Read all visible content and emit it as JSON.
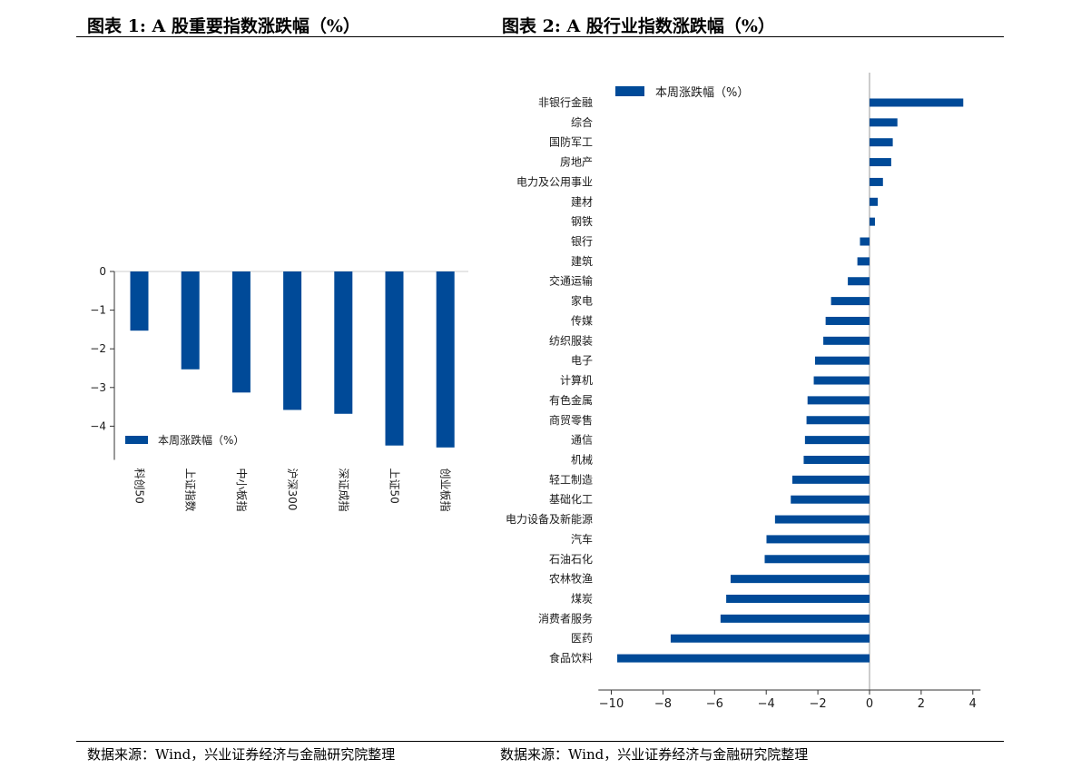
{
  "header": {
    "left_title": "图表 1:  A 股重要指数涨跌幅（%）",
    "right_title": "图表 2:  A 股行业指数涨跌幅（%）"
  },
  "footer": {
    "left_source": "数据来源：Wind，兴业证券经济与金融研究院整理",
    "right_source": "数据来源：Wind，兴业证券经济与金融研究院整理"
  },
  "colors": {
    "bar": "#004a98",
    "axis": "#333333",
    "zero_line": "#cccccc"
  },
  "chart_data": [
    {
      "type": "bar",
      "orientation": "vertical",
      "categories": [
        "科创50",
        "上证指数",
        "中小板指",
        "沪深300",
        "深证成指",
        "上证50",
        "创业板指"
      ],
      "series": [
        {
          "name": "本周涨跌幅（%）",
          "values": [
            -1.53,
            -2.53,
            -3.13,
            -3.58,
            -3.68,
            -4.5,
            -4.55
          ]
        }
      ],
      "ylim": [
        -4.8,
        0
      ],
      "yticks": [
        0,
        -1,
        -2,
        -3,
        -4
      ],
      "ytick_labels": [
        "0",
        "−1",
        "−2",
        "−3",
        "−4"
      ],
      "legend": "lower-left",
      "grid": false
    },
    {
      "type": "bar",
      "orientation": "horizontal",
      "categories": [
        "非银行金融",
        "综合",
        "国防军工",
        "房地产",
        "电力及公用事业",
        "建材",
        "钢铁",
        "银行",
        "建筑",
        "交通运输",
        "家电",
        "传媒",
        "纺织服装",
        "电子",
        "计算机",
        "有色金属",
        "商贸零售",
        "通信",
        "机械",
        "轻工制造",
        "基础化工",
        "电力设备及新能源",
        "汽车",
        "石油石化",
        "农林牧渔",
        "煤炭",
        "消费者服务",
        "医药",
        "食品饮料"
      ],
      "series": [
        {
          "name": "本周涨跌幅（%）",
          "values": [
            3.63,
            1.08,
            0.9,
            0.84,
            0.52,
            0.32,
            0.21,
            -0.37,
            -0.47,
            -0.84,
            -1.49,
            -1.7,
            -1.79,
            -2.11,
            -2.16,
            -2.4,
            -2.44,
            -2.5,
            -2.55,
            -2.99,
            -3.05,
            -3.66,
            -3.99,
            -4.06,
            -5.38,
            -5.55,
            -5.77,
            -7.7,
            -9.77
          ]
        }
      ],
      "xlim": [
        -10.5,
        4.3
      ],
      "xticks": [
        -10,
        -8,
        -6,
        -4,
        -2,
        0,
        2,
        4
      ],
      "xtick_labels": [
        "−10",
        "−8",
        "−6",
        "−4",
        "−2",
        "0",
        "2",
        "4"
      ],
      "legend": "top-left",
      "grid": false
    }
  ]
}
